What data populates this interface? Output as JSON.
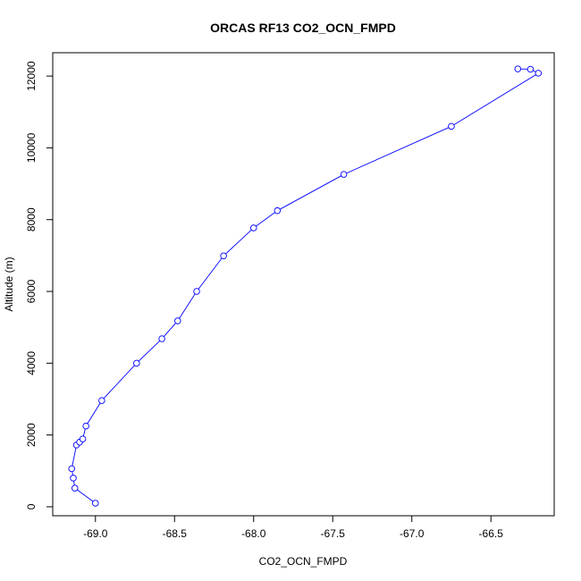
{
  "chart_data": {
    "type": "line",
    "title": "ORCAS RF13 CO2_OCN_FMPD",
    "xlabel": "CO2_OCN_FMPD",
    "ylabel": "Altitude (m)",
    "xlim": [
      -69.27,
      -66.1
    ],
    "ylim": [
      -250,
      12650
    ],
    "xticks": [
      -69.0,
      -68.5,
      -68.0,
      -67.5,
      -67.0,
      -66.5
    ],
    "xtick_labels": [
      "-69.0",
      "-68.5",
      "-68.0",
      "-67.5",
      "-67.0",
      "-66.5"
    ],
    "yticks": [
      0,
      2000,
      4000,
      6000,
      8000,
      10000,
      12000
    ],
    "ytick_labels": [
      "0",
      "2000",
      "4000",
      "6000",
      "8000",
      "10000",
      "12000"
    ],
    "line_color": "#0000ff",
    "marker": "open-circle",
    "grid": false,
    "legend": "none",
    "series": [
      {
        "points": [
          {
            "x": -69.0,
            "y": 100
          },
          {
            "x": -69.13,
            "y": 520
          },
          {
            "x": -69.14,
            "y": 800
          },
          {
            "x": -69.15,
            "y": 1060
          },
          {
            "x": -69.12,
            "y": 1720
          },
          {
            "x": -69.1,
            "y": 1800
          },
          {
            "x": -69.08,
            "y": 1890
          },
          {
            "x": -69.06,
            "y": 2250
          },
          {
            "x": -68.96,
            "y": 2960
          },
          {
            "x": -68.74,
            "y": 4000
          },
          {
            "x": -68.58,
            "y": 4680
          },
          {
            "x": -68.48,
            "y": 5180
          },
          {
            "x": -68.36,
            "y": 6000
          },
          {
            "x": -68.19,
            "y": 6990
          },
          {
            "x": -68.0,
            "y": 7770
          },
          {
            "x": -67.85,
            "y": 8250
          },
          {
            "x": -67.43,
            "y": 9260
          },
          {
            "x": -66.75,
            "y": 10600
          },
          {
            "x": -66.2,
            "y": 12080
          },
          {
            "x": -66.25,
            "y": 12190
          },
          {
            "x": -66.33,
            "y": 12200
          }
        ]
      }
    ]
  }
}
